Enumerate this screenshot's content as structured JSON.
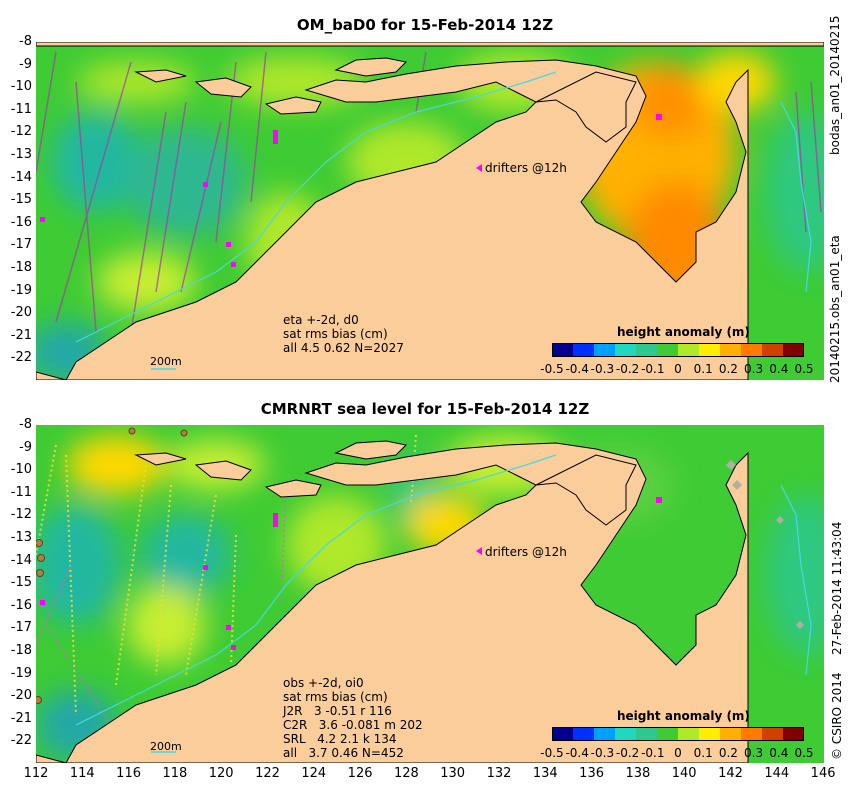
{
  "panels": [
    {
      "title": "OM_baD0 for 15-Feb-2014 12Z",
      "notes": [
        "eta +-2d, d0",
        "sat rms bias (cm)",
        "all 4.5 0.62 N=2027"
      ],
      "drifter_label": "drifters @12h",
      "scale_label": "200m",
      "colorbar_label": "height anomaly (m)",
      "side_top": "bodas_an01_20140215",
      "side_bottom": "20140215.obs_an01_eta"
    },
    {
      "title": "CMRNRT sea level  for 15-Feb-2014 12Z",
      "notes": [
        "obs +-2d, oi0",
        "sat rms bias (cm)",
        "J2R   3 -0.51 r 116",
        "C2R   3.6 -0.081 m 202",
        "SRL   4.2 2.1 k 134",
        "all   3.7 0.46 N=452"
      ],
      "drifter_label": "drifters @12h",
      "scale_label": "200m",
      "colorbar_label": "height anomaly (m)",
      "side_top": "27-Feb-2014 11:43:04",
      "side_bottom": "© CSIRO 2014"
    }
  ],
  "y_ticks": [
    "-8",
    "-9",
    "-10",
    "-11",
    "-12",
    "-13",
    "-14",
    "-15",
    "-16",
    "-17",
    "-18",
    "-19",
    "-20",
    "-21",
    "-22"
  ],
  "x_ticks": [
    "112",
    "114",
    "116",
    "118",
    "120",
    "122",
    "124",
    "126",
    "128",
    "130",
    "132",
    "134",
    "136",
    "138",
    "140",
    "142",
    "144",
    "146"
  ],
  "colorbar_ticks": [
    "-0.5",
    "-0.4",
    "-0.3",
    "-0.2",
    "-0.1",
    "0",
    "0.1",
    "0.2",
    "0.3",
    "0.4",
    "0.5"
  ],
  "colors": {
    "land": "#fbcd9b",
    "ocean_base": "#3ecb34",
    "coast": "#000000",
    "isobath": "#48d8e0",
    "drifter": "#ff00ff"
  },
  "colorbar_colors": [
    "#00008f",
    "#0030ff",
    "#00a0ff",
    "#20d8c0",
    "#2ec88e",
    "#3ecb34",
    "#b0e82a",
    "#ffee00",
    "#ffb000",
    "#ff7a00",
    "#d04000",
    "#800000"
  ]
}
